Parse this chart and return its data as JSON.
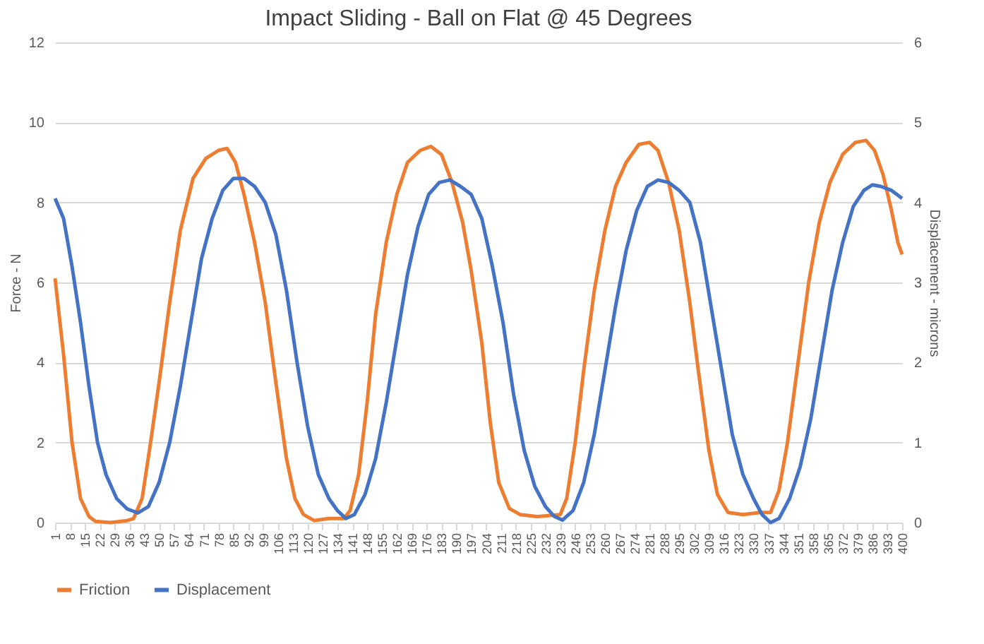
{
  "chart_data": {
    "type": "line",
    "title": "Impact Sliding - Ball on Flat @ 45 Degrees",
    "ylabel": "Force - N",
    "y2label": "Displacement - microns",
    "xlim": [
      1,
      400
    ],
    "xticks": [
      1,
      8,
      15,
      22,
      29,
      36,
      43,
      50,
      57,
      64,
      71,
      78,
      85,
      92,
      99,
      106,
      113,
      120,
      127,
      134,
      141,
      148,
      155,
      162,
      169,
      176,
      183,
      190,
      197,
      204,
      211,
      218,
      225,
      232,
      239,
      246,
      253,
      260,
      267,
      274,
      281,
      288,
      295,
      302,
      309,
      316,
      323,
      330,
      337,
      344,
      351,
      358,
      365,
      372,
      379,
      386,
      393,
      400
    ],
    "ylim": [
      0,
      12
    ],
    "yticks": [
      0,
      2,
      4,
      6,
      8,
      10,
      12
    ],
    "y2lim": [
      0,
      6
    ],
    "y2ticks": [
      0,
      1,
      2,
      3,
      4,
      5,
      6
    ],
    "grid": "y",
    "legend": "bottom",
    "marker": "none",
    "line_style": "solid",
    "series": [
      {
        "name": "Friction",
        "color": "#ed7d31",
        "x": [
          1,
          5,
          9,
          13,
          17,
          20,
          27,
          35,
          38,
          42,
          46,
          50,
          55,
          60,
          66,
          72,
          78,
          82,
          86,
          90,
          95,
          100,
          105,
          110,
          114,
          118,
          123,
          130,
          137,
          140,
          144,
          148,
          152,
          157,
          162,
          167,
          173,
          178,
          183,
          188,
          193,
          197,
          202,
          206,
          210,
          215,
          220,
          228,
          235,
          239,
          242,
          246,
          250,
          255,
          260,
          265,
          270,
          276,
          281,
          285,
          290,
          295,
          300,
          304,
          309,
          313,
          318,
          325,
          333,
          338,
          342,
          346,
          351,
          356,
          361,
          366,
          372,
          378,
          383,
          387,
          391,
          395,
          398,
          400
        ],
        "values": [
          6.1,
          4.2,
          2.0,
          0.6,
          0.15,
          0.03,
          0.0,
          0.05,
          0.1,
          0.6,
          2.0,
          3.5,
          5.5,
          7.3,
          8.6,
          9.1,
          9.3,
          9.35,
          9.0,
          8.2,
          7.0,
          5.5,
          3.5,
          1.6,
          0.6,
          0.2,
          0.05,
          0.1,
          0.1,
          0.3,
          1.2,
          3.0,
          5.2,
          7.0,
          8.2,
          9.0,
          9.3,
          9.4,
          9.2,
          8.5,
          7.5,
          6.3,
          4.5,
          2.5,
          1.0,
          0.35,
          0.2,
          0.15,
          0.18,
          0.2,
          0.6,
          2.0,
          3.8,
          5.8,
          7.3,
          8.4,
          9.0,
          9.45,
          9.5,
          9.3,
          8.5,
          7.3,
          5.5,
          3.8,
          1.8,
          0.7,
          0.25,
          0.2,
          0.25,
          0.25,
          0.8,
          2.0,
          4.0,
          6.0,
          7.5,
          8.5,
          9.2,
          9.5,
          9.55,
          9.3,
          8.7,
          7.8,
          7.0,
          6.7
        ]
      },
      {
        "name": "Displacement",
        "color": "#4472c4",
        "axis": "y2",
        "x": [
          1,
          5,
          9,
          13,
          17,
          21,
          25,
          30,
          35,
          40,
          45,
          50,
          55,
          60,
          65,
          70,
          75,
          80,
          85,
          90,
          95,
          100,
          105,
          110,
          115,
          120,
          125,
          130,
          134,
          138,
          142,
          147,
          152,
          157,
          162,
          167,
          172,
          177,
          182,
          187,
          192,
          197,
          202,
          207,
          212,
          217,
          222,
          227,
          232,
          236,
          240,
          245,
          250,
          255,
          260,
          265,
          270,
          275,
          280,
          285,
          290,
          295,
          300,
          305,
          310,
          315,
          320,
          325,
          330,
          334,
          338,
          342,
          347,
          352,
          357,
          362,
          367,
          372,
          377,
          382,
          386,
          390,
          395,
          400
        ],
        "values": [
          4.05,
          3.8,
          3.2,
          2.5,
          1.7,
          1.0,
          0.6,
          0.3,
          0.17,
          0.12,
          0.2,
          0.5,
          1.0,
          1.7,
          2.5,
          3.3,
          3.8,
          4.15,
          4.3,
          4.3,
          4.2,
          4.0,
          3.6,
          2.9,
          2.0,
          1.2,
          0.6,
          0.3,
          0.15,
          0.05,
          0.1,
          0.35,
          0.8,
          1.5,
          2.3,
          3.1,
          3.7,
          4.1,
          4.25,
          4.28,
          4.2,
          4.1,
          3.8,
          3.2,
          2.5,
          1.6,
          0.9,
          0.45,
          0.2,
          0.08,
          0.03,
          0.15,
          0.5,
          1.1,
          1.9,
          2.7,
          3.4,
          3.9,
          4.2,
          4.28,
          4.25,
          4.15,
          4.0,
          3.5,
          2.7,
          1.9,
          1.1,
          0.6,
          0.3,
          0.1,
          0.0,
          0.05,
          0.3,
          0.7,
          1.3,
          2.1,
          2.9,
          3.5,
          3.95,
          4.15,
          4.22,
          4.2,
          4.15,
          4.05
        ]
      }
    ]
  }
}
